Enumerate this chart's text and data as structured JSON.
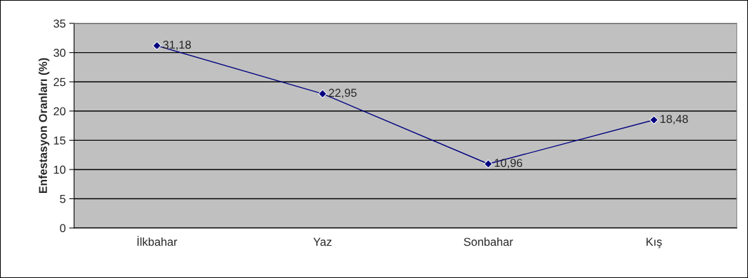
{
  "chart_data": {
    "type": "line",
    "ylabel": "Enfestasyon Oranları (%)",
    "categories": [
      "İlkbahar",
      "Yaz",
      "Sonbahar",
      "Kış"
    ],
    "series": [
      {
        "color": "#000080",
        "values": [
          31.18,
          22.95,
          10.96,
          18.48
        ],
        "value_labels": [
          "31,18",
          "22,95",
          "10,96",
          "18,48"
        ]
      }
    ],
    "ylim": [
      0,
      35
    ],
    "yticks": [
      0,
      5,
      10,
      15,
      20,
      25,
      30,
      35
    ],
    "grid": "y",
    "marker": "diamond",
    "line_style": "solid",
    "legend": false
  }
}
